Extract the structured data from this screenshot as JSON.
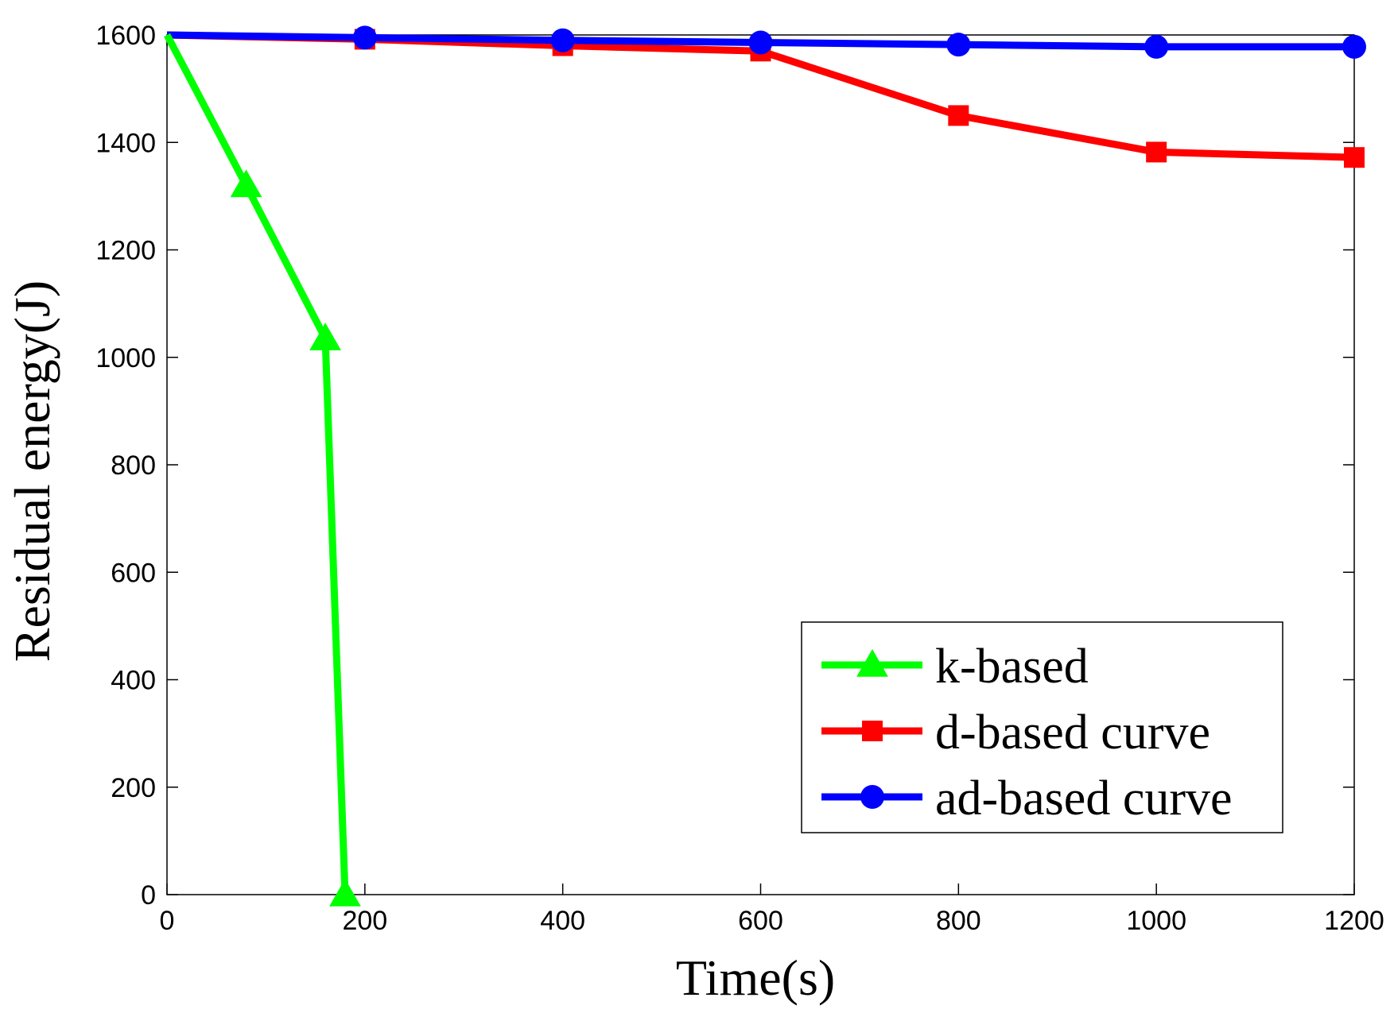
{
  "chart_data": {
    "type": "line",
    "title": "",
    "xlabel": "Time(s)",
    "ylabel": "Residual energy(J)",
    "xlim": [
      0,
      1200
    ],
    "ylim": [
      0,
      1600
    ],
    "xticks": [
      0,
      200,
      400,
      600,
      800,
      1000,
      1200
    ],
    "yticks": [
      0,
      200,
      400,
      600,
      800,
      1000,
      1200,
      1400,
      1600
    ],
    "grid": false,
    "legend_position": "bottom-right",
    "series": [
      {
        "name": "k-based",
        "color": "#00ff00",
        "marker": "triangle",
        "x": [
          0,
          80,
          160,
          180
        ],
        "y": [
          1600,
          1320,
          1035,
          0
        ]
      },
      {
        "name": "d-based curve",
        "color": "#ff0000",
        "marker": "square",
        "x": [
          0,
          200,
          400,
          600,
          800,
          1000,
          1200
        ],
        "y": [
          1600,
          1592,
          1580,
          1570,
          1450,
          1382,
          1372
        ]
      },
      {
        "name": "ad-based curve",
        "color": "#0000ff",
        "marker": "circle",
        "x": [
          0,
          200,
          400,
          600,
          800,
          1000,
          1200
        ],
        "y": [
          1600,
          1595,
          1590,
          1586,
          1582,
          1578,
          1578
        ]
      }
    ]
  }
}
